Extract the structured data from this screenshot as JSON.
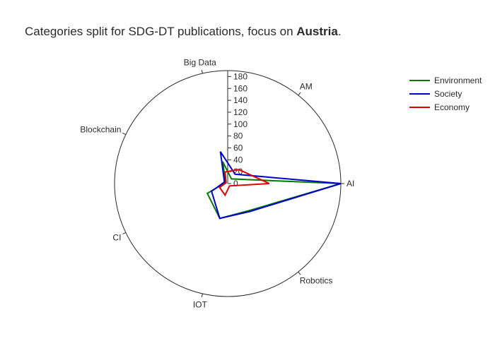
{
  "chart_data": {
    "type": "polar-line",
    "title": {
      "prefix": "Categories split for SDG-DT publications, focus on ",
      "bold": "Austria",
      "suffix": "."
    },
    "categories": [
      "AI",
      "AM",
      "Big Data",
      "Blockchain",
      "CI",
      "IOT",
      "Robotics"
    ],
    "angles_deg": [
      0,
      51.43,
      102.86,
      154.29,
      205.71,
      257.14,
      308.57
    ],
    "radial_axis": {
      "range": [
        0,
        190
      ],
      "ticks": [
        0,
        20,
        40,
        60,
        80,
        100,
        120,
        140,
        160,
        180
      ],
      "angle_deg": 90
    },
    "series": [
      {
        "name": "Environment",
        "color": "#007a00",
        "values": [
          190,
          10,
          38,
          4,
          38,
          60,
          58
        ]
      },
      {
        "name": "Society",
        "color": "#0000cc",
        "values": [
          190,
          20,
          55,
          6,
          30,
          60,
          60
        ]
      },
      {
        "name": "Economy",
        "color": "#dd0000",
        "values": [
          70,
          30,
          20,
          3,
          15,
          20,
          5
        ]
      }
    ],
    "legend_position": "top-right",
    "grid": false
  }
}
